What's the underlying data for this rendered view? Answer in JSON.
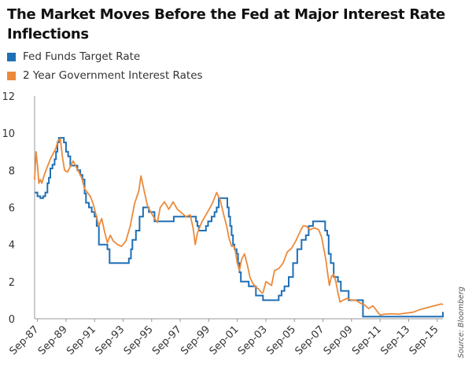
{
  "chart_data": {
    "type": "line",
    "title": "The Market Moves Before the Fed at Major Interest Rate Inflections",
    "xlabel": "",
    "ylabel": "",
    "x_tick_labels": [
      "Sep-87",
      "Sep-89",
      "Sep-91",
      "Sep-93",
      "Sep-95",
      "Sep-97",
      "Sep-99",
      "Sep-01",
      "Sep-03",
      "Sep-05",
      "Sep-07",
      "Sep-09",
      "Sep-11",
      "Sep-13",
      "Sep-15"
    ],
    "y_ticks": [
      0,
      2,
      4,
      6,
      8,
      10,
      12
    ],
    "ylim": [
      0,
      12
    ],
    "xlim": [
      1987.5,
      2016.1
    ],
    "grid": false,
    "legend_position": "top-left",
    "source": "Source: Bloomberg",
    "series": [
      {
        "name": "Fed Funds Target Rate",
        "color": "#1f6fb5",
        "x": [
          1987.5,
          1987.7,
          1987.9,
          1988.1,
          1988.25,
          1988.4,
          1988.5,
          1988.6,
          1988.75,
          1988.9,
          1989.0,
          1989.1,
          1989.2,
          1989.3,
          1989.45,
          1989.55,
          1989.7,
          1989.85,
          1990.0,
          1990.3,
          1990.5,
          1990.7,
          1990.85,
          1991.0,
          1991.1,
          1991.3,
          1991.5,
          1991.7,
          1991.85,
          1992.0,
          1992.2,
          1992.6,
          1992.75,
          1993.0,
          1993.5,
          1994.0,
          1994.1,
          1994.25,
          1994.35,
          1994.6,
          1994.85,
          1995.1,
          1995.5,
          1995.9,
          1996.1,
          1996.5,
          1997.0,
          1997.25,
          1997.6,
          1998.0,
          1998.5,
          1998.8,
          1998.9,
          1999.0,
          1999.5,
          1999.65,
          1999.9,
          2000.1,
          2000.25,
          2000.4,
          2000.6,
          2000.9,
          2001.0,
          2001.1,
          2001.2,
          2001.3,
          2001.4,
          2001.5,
          2001.65,
          2001.75,
          2001.85,
          2001.95,
          2002.5,
          2002.9,
          2003.0,
          2003.4,
          2003.5,
          2004.0,
          2004.5,
          2004.6,
          2004.8,
          2005.0,
          2005.3,
          2005.6,
          2005.9,
          2006.2,
          2006.5,
          2006.7,
          2007.0,
          2007.5,
          2007.7,
          2007.85,
          2008.0,
          2008.1,
          2008.25,
          2008.45,
          2008.75,
          2008.85,
          2008.95,
          2009.5,
          2010.5,
          2011.5,
          2012.5,
          2013.5,
          2014.5,
          2015.5,
          2015.95,
          2016.1
        ],
        "values": [
          6.8,
          6.6,
          6.5,
          6.6,
          6.8,
          7.3,
          7.6,
          8.1,
          8.3,
          8.6,
          9.0,
          9.5,
          9.75,
          9.75,
          9.75,
          9.5,
          9.0,
          8.75,
          8.25,
          8.25,
          8.0,
          7.75,
          7.5,
          6.75,
          6.25,
          6.0,
          5.75,
          5.5,
          5.0,
          4.0,
          4.0,
          3.75,
          3.0,
          3.0,
          3.0,
          3.0,
          3.25,
          3.75,
          4.25,
          4.75,
          5.5,
          6.0,
          5.75,
          5.25,
          5.25,
          5.25,
          5.25,
          5.5,
          5.5,
          5.5,
          5.5,
          5.25,
          5.0,
          4.75,
          5.0,
          5.25,
          5.5,
          5.75,
          6.0,
          6.5,
          6.5,
          6.5,
          6.0,
          5.5,
          5.0,
          4.5,
          4.0,
          3.75,
          3.5,
          3.0,
          2.5,
          2.0,
          1.75,
          1.75,
          1.25,
          1.25,
          1.0,
          1.0,
          1.0,
          1.25,
          1.5,
          1.75,
          2.25,
          3.0,
          3.75,
          4.25,
          4.5,
          5.0,
          5.25,
          5.25,
          5.25,
          4.75,
          4.5,
          3.5,
          3.0,
          2.25,
          2.0,
          2.0,
          1.5,
          1.0,
          0.12,
          0.12,
          0.12,
          0.12,
          0.12,
          0.12,
          0.12,
          0.37
        ]
      },
      {
        "name": "2 Year Government Interest Rates",
        "color": "#ec8a3b",
        "x": [
          1987.5,
          1987.6,
          1987.7,
          1987.8,
          1987.9,
          1988.0,
          1988.2,
          1988.4,
          1988.6,
          1988.8,
          1989.0,
          1989.15,
          1989.3,
          1989.45,
          1989.6,
          1989.8,
          1990.0,
          1990.2,
          1990.4,
          1990.6,
          1990.8,
          1991.0,
          1991.2,
          1991.4,
          1991.6,
          1991.8,
          1992.0,
          1992.2,
          1992.4,
          1992.6,
          1992.8,
          1993.0,
          1993.3,
          1993.6,
          1993.9,
          1994.2,
          1994.5,
          1994.8,
          1994.95,
          1995.2,
          1995.4,
          1995.6,
          1995.9,
          1996.1,
          1996.3,
          1996.6,
          1996.9,
          1997.2,
          1997.5,
          1997.8,
          1998.1,
          1998.4,
          1998.6,
          1998.75,
          1998.9,
          1999.2,
          1999.5,
          1999.8,
          2000.0,
          2000.25,
          2000.5,
          2000.75,
          2000.95,
          2001.1,
          2001.3,
          2001.5,
          2001.7,
          2001.85,
          2002.0,
          2002.2,
          2002.4,
          2002.6,
          2002.8,
          2003.0,
          2003.2,
          2003.4,
          2003.5,
          2003.7,
          2003.9,
          2004.1,
          2004.3,
          2004.6,
          2004.9,
          2005.2,
          2005.5,
          2005.8,
          2006.1,
          2006.3,
          2006.5,
          2006.8,
          2007.1,
          2007.4,
          2007.6,
          2007.75,
          2007.9,
          2008.0,
          2008.15,
          2008.3,
          2008.45,
          2008.6,
          2008.75,
          2008.9,
          2009.1,
          2009.4,
          2009.7,
          2010.0,
          2010.3,
          2010.6,
          2010.9,
          2011.2,
          2011.5,
          2011.7,
          2012.0,
          2012.5,
          2013.0,
          2013.5,
          2014.0,
          2014.5,
          2015.0,
          2015.5,
          2016.0,
          2016.1
        ],
        "values": [
          7.5,
          9.0,
          8.3,
          7.3,
          7.5,
          7.3,
          7.8,
          8.2,
          8.6,
          8.9,
          9.2,
          9.6,
          9.7,
          8.7,
          8.0,
          7.9,
          8.2,
          8.5,
          8.2,
          7.9,
          7.6,
          7.0,
          6.8,
          6.6,
          6.2,
          5.6,
          5.0,
          5.4,
          4.7,
          4.1,
          4.5,
          4.2,
          4.0,
          3.9,
          4.2,
          5.0,
          6.2,
          6.9,
          7.7,
          6.8,
          6.1,
          5.8,
          5.4,
          5.2,
          6.0,
          6.3,
          5.9,
          6.3,
          5.9,
          5.7,
          5.5,
          5.6,
          4.9,
          4.0,
          4.6,
          5.2,
          5.6,
          6.0,
          6.3,
          6.8,
          6.4,
          5.6,
          5.0,
          4.4,
          3.9,
          3.9,
          3.0,
          2.6,
          3.2,
          3.5,
          2.9,
          2.2,
          1.9,
          1.7,
          1.6,
          1.4,
          1.4,
          2.0,
          1.9,
          1.8,
          2.6,
          2.7,
          3.0,
          3.6,
          3.8,
          4.2,
          4.7,
          5.0,
          5.0,
          4.8,
          4.9,
          4.8,
          4.4,
          3.8,
          3.2,
          2.6,
          1.8,
          2.3,
          2.4,
          2.0,
          1.4,
          0.9,
          1.0,
          1.1,
          1.0,
          1.0,
          0.85,
          0.75,
          0.55,
          0.7,
          0.4,
          0.2,
          0.25,
          0.27,
          0.25,
          0.3,
          0.35,
          0.5,
          0.6,
          0.7,
          0.8,
          0.75
        ]
      }
    ]
  }
}
